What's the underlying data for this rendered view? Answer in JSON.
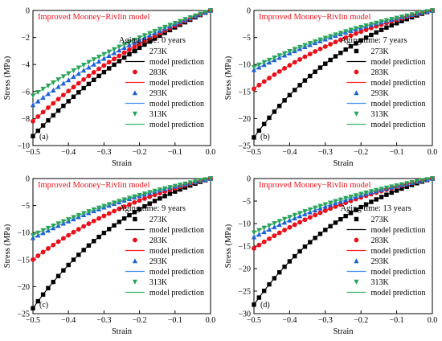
{
  "chart_data": [
    {
      "type": "scatter",
      "panel_label": "(a)",
      "title": "Improved Mooney−Rivlin model",
      "aging_label": "Aging time: 0 years",
      "xlabel": "Strain",
      "ylabel": "Stress (MPa)",
      "xlim": [
        -0.5,
        0.0
      ],
      "ylim": [
        -10,
        0
      ],
      "xticks": [
        -0.5,
        -0.4,
        -0.3,
        -0.2,
        -0.1,
        0.0
      ],
      "yticks": [
        -10,
        -8,
        -6,
        -4,
        -2,
        0
      ],
      "xtick_labels": [
        "−0.5",
        "−0.4",
        "−0.3",
        "−0.2",
        "−0.1",
        "0.0"
      ],
      "ytick_labels": [
        "−10",
        "−8",
        "−6",
        "−4",
        "−2",
        "0"
      ],
      "legend_location": "right",
      "series": [
        {
          "name": "273K",
          "stress_at_min_strain": -9.3,
          "curve_exponent": 1.8
        },
        {
          "name": "283K",
          "stress_at_min_strain": -8.2,
          "curve_exponent": 1.7
        },
        {
          "name": "293K",
          "stress_at_min_strain": -7.0,
          "curve_exponent": 1.5
        },
        {
          "name": "313K",
          "stress_at_min_strain": -6.3,
          "curve_exponent": 1.4
        }
      ]
    },
    {
      "type": "scatter",
      "panel_label": "(b)",
      "title": "Improved Mooney−Rivlin model",
      "aging_label": "Aging time: 7 years",
      "xlabel": "Strain",
      "ylabel": "Stress (MPa)",
      "xlim": [
        -0.5,
        0.0
      ],
      "ylim": [
        -25,
        0
      ],
      "xticks": [
        -0.5,
        -0.4,
        -0.3,
        -0.2,
        -0.1,
        0.0
      ],
      "yticks": [
        -25,
        -20,
        -15,
        -10,
        -5,
        0
      ],
      "xtick_labels": [
        "−0.5",
        "−0.4",
        "−0.3",
        "−0.2",
        "−0.1",
        "0.0"
      ],
      "ytick_labels": [
        "−25",
        "−20",
        "−15",
        "−10",
        "−5",
        "0"
      ],
      "legend_location": "right",
      "series": [
        {
          "name": "273K",
          "stress_at_min_strain": -23.5,
          "curve_exponent": 3.0
        },
        {
          "name": "283K",
          "stress_at_min_strain": -14.5,
          "curve_exponent": 2.3
        },
        {
          "name": "293K",
          "stress_at_min_strain": -11.0,
          "curve_exponent": 1.9
        },
        {
          "name": "313K",
          "stress_at_min_strain": -10.5,
          "curve_exponent": 1.9
        }
      ]
    },
    {
      "type": "scatter",
      "panel_label": "(c)",
      "title": "Improved Mooney−Rivlin model",
      "aging_label": "Aging time: 9 years",
      "xlabel": "Strain",
      "ylabel": "Stress (MPa)",
      "xlim": [
        -0.5,
        0.0
      ],
      "ylim": [
        -25,
        0
      ],
      "xticks": [
        -0.5,
        -0.4,
        -0.3,
        -0.2,
        -0.1,
        0.0
      ],
      "yticks": [
        -25,
        -20,
        -15,
        -10,
        -5,
        0
      ],
      "xtick_labels": [
        "−0.5",
        "−0.4",
        "−0.3",
        "−0.2",
        "−0.1",
        "0.0"
      ],
      "ytick_labels": [
        "−25",
        "−20",
        "−15",
        "−10",
        "−5",
        "0"
      ],
      "legend_location": "right",
      "series": [
        {
          "name": "273K",
          "stress_at_min_strain": -24.0,
          "curve_exponent": 3.0
        },
        {
          "name": "283K",
          "stress_at_min_strain": -15.0,
          "curve_exponent": 2.3
        },
        {
          "name": "293K",
          "stress_at_min_strain": -11.0,
          "curve_exponent": 1.9
        },
        {
          "name": "313K",
          "stress_at_min_strain": -10.5,
          "curve_exponent": 1.9
        }
      ]
    },
    {
      "type": "scatter",
      "panel_label": "(d)",
      "title": "Improved Mooney−Rivlin model",
      "aging_label": "Aging time: 13 years",
      "xlabel": "Strain",
      "ylabel": "Stress (MPa)",
      "xlim": [
        -0.5,
        0.0
      ],
      "ylim": [
        -30,
        0
      ],
      "xticks": [
        -0.5,
        -0.4,
        -0.3,
        -0.2,
        -0.1,
        0.0
      ],
      "yticks": [
        -30,
        -25,
        -20,
        -15,
        -10,
        -5,
        0
      ],
      "xtick_labels": [
        "−0.5",
        "−0.4",
        "−0.3",
        "−0.2",
        "−0.1",
        "0.0"
      ],
      "ytick_labels": [
        "−30",
        "−25",
        "−20",
        "−15",
        "−10",
        "−5",
        "0"
      ],
      "legend_location": "right",
      "series": [
        {
          "name": "273K",
          "stress_at_min_strain": -28.0,
          "curve_exponent": 3.2
        },
        {
          "name": "283K",
          "stress_at_min_strain": -15.5,
          "curve_exponent": 2.3
        },
        {
          "name": "293K",
          "stress_at_min_strain": -13.0,
          "curve_exponent": 2.0
        },
        {
          "name": "313K",
          "stress_at_min_strain": -12.0,
          "curve_exponent": 2.0
        }
      ]
    }
  ],
  "legend": {
    "model_label": "model prediction"
  },
  "colors": {
    "title": "#e8101a",
    "axis": "#000000",
    "series_markers": [
      "#000000",
      "#e8101a",
      "#1f5fd6",
      "#2aa35a"
    ],
    "model_lines": [
      "#000000",
      "#ff2020",
      "#4a8ff0",
      "#3db86a"
    ]
  },
  "marker_shapes": [
    "square",
    "circle",
    "triangle-up",
    "triangle-down"
  ]
}
